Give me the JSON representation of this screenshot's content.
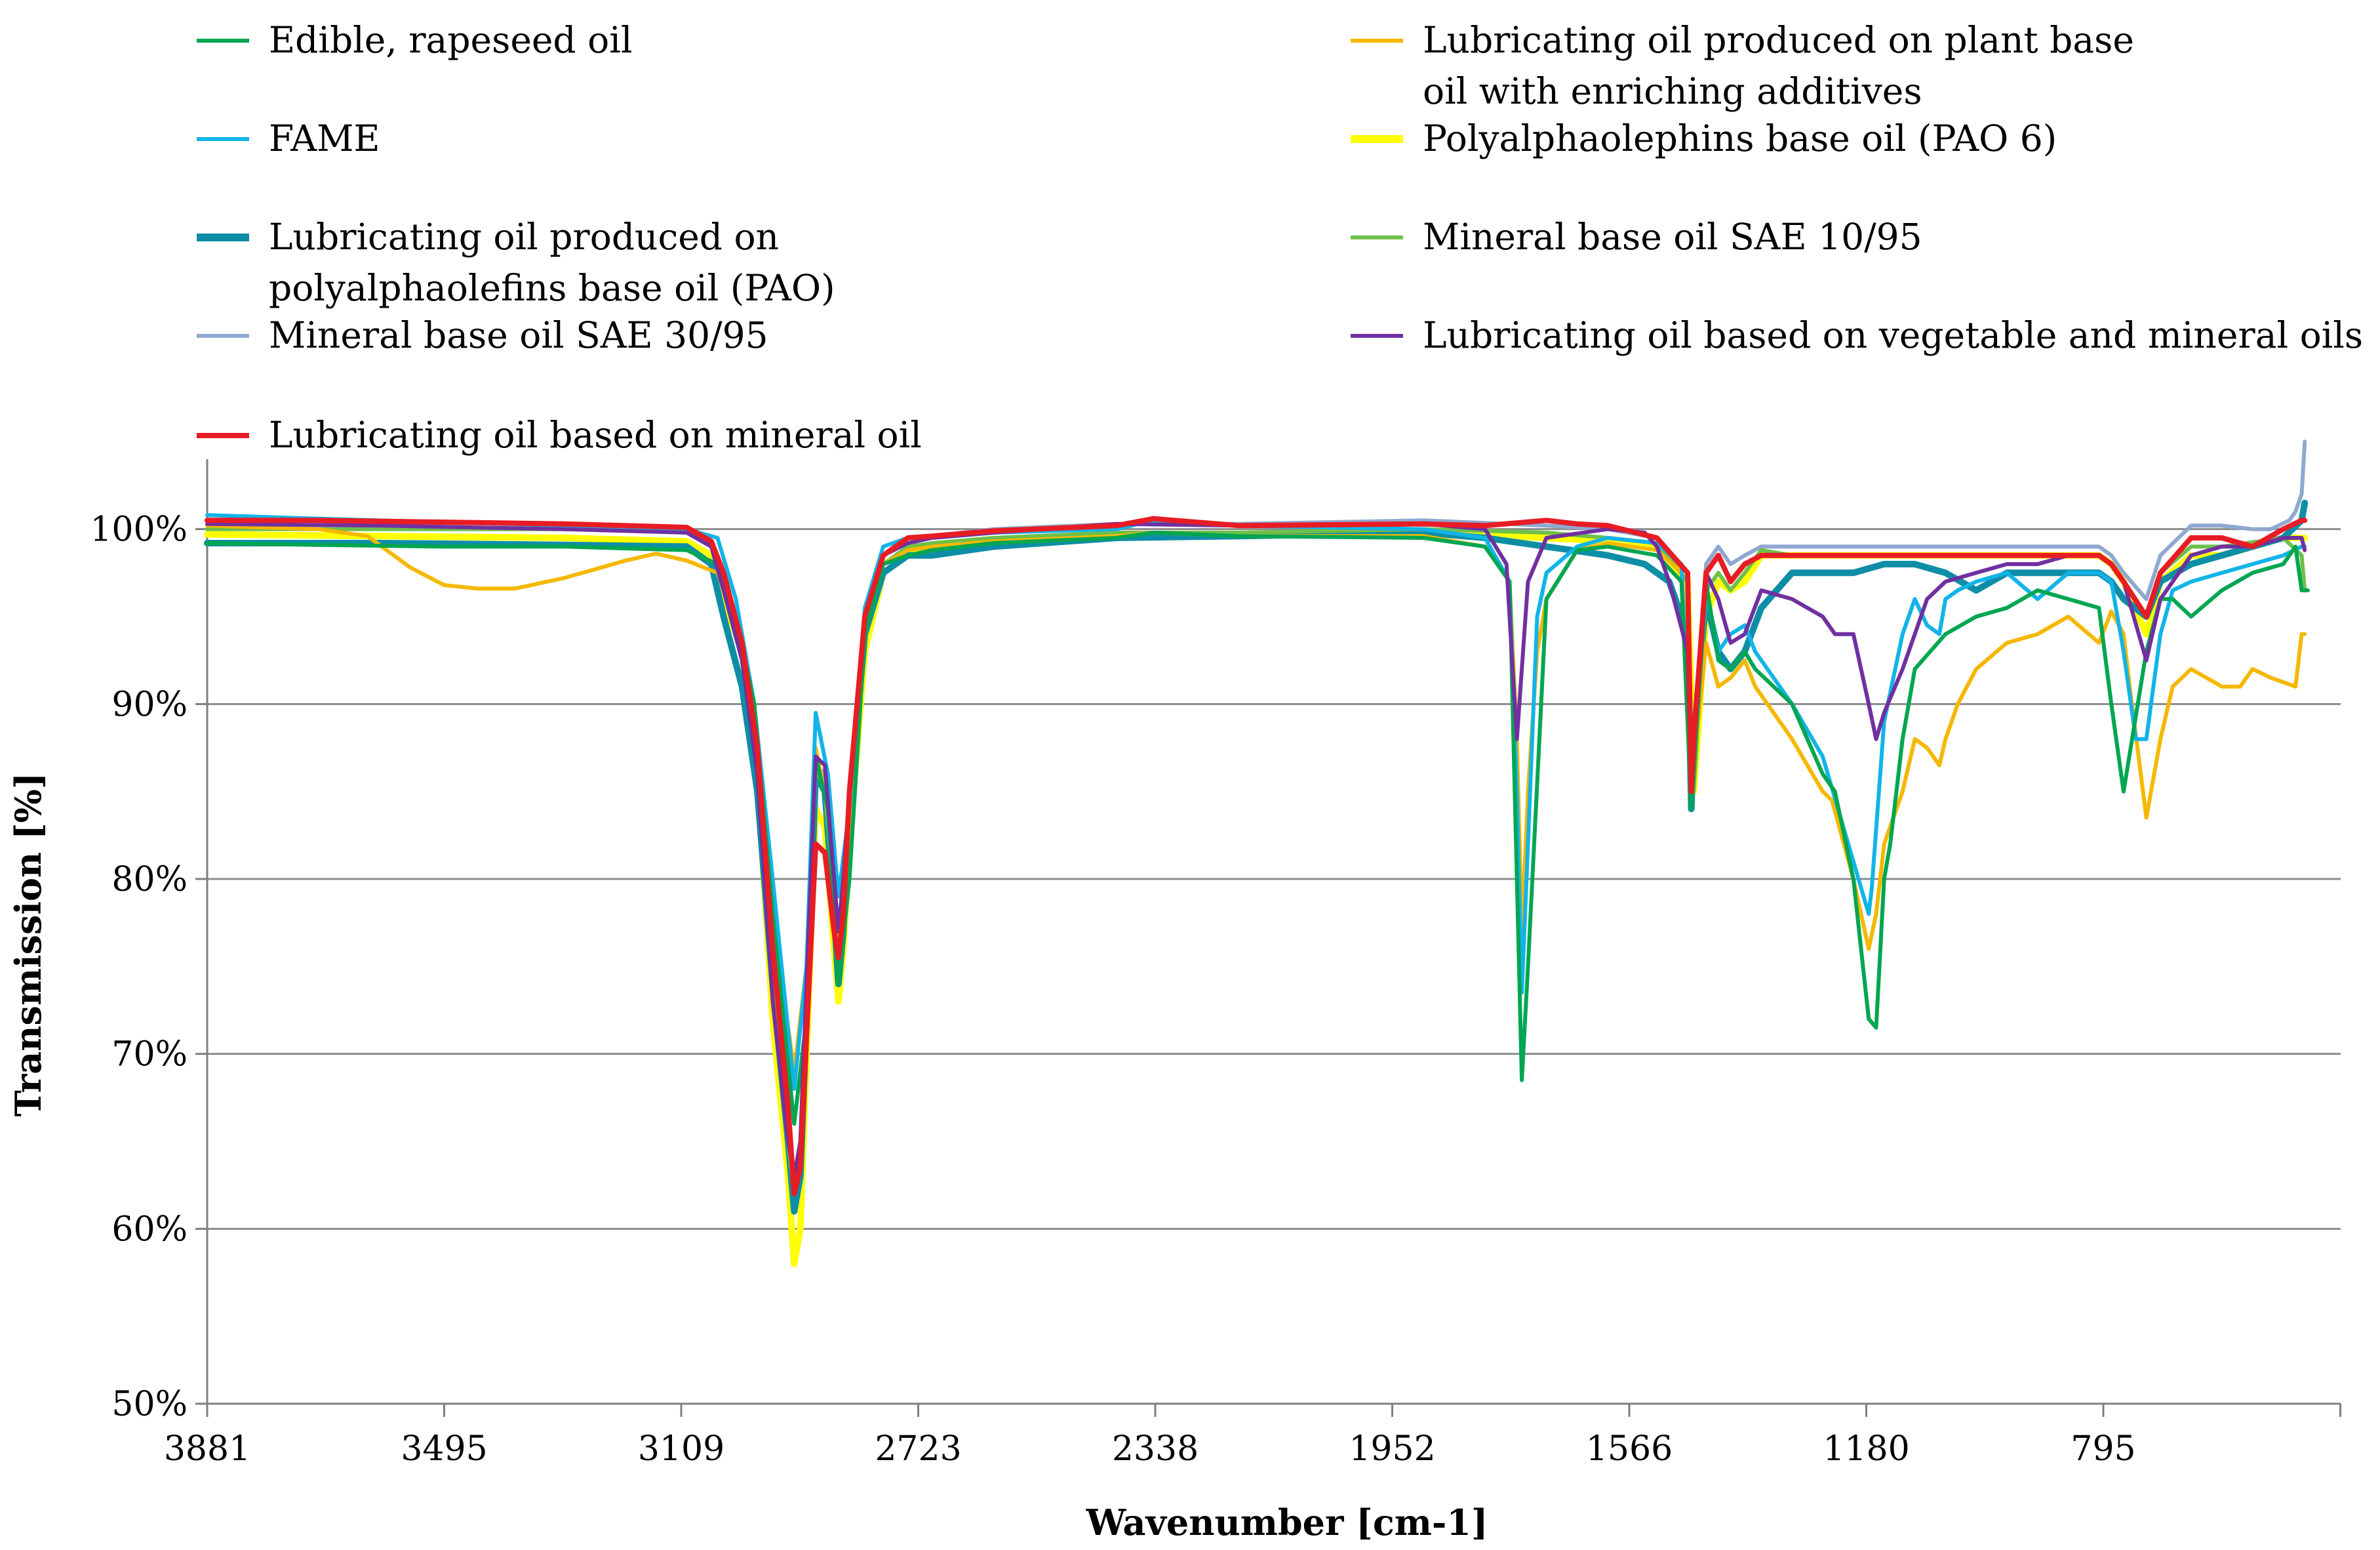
{
  "chart_data": {
    "type": "line",
    "title": "",
    "xlabel": "Wavenumber [cm-1]",
    "ylabel": "Transmission [%]",
    "xlim": [
      3881,
      400
    ],
    "x_reversed": true,
    "ylim": [
      50,
      104
    ],
    "x_ticks": [
      "3881",
      "3495",
      "3109",
      "2723",
      "2338",
      "1952",
      "1566",
      "1180",
      "795"
    ],
    "y_ticks": [
      "50%",
      "60%",
      "70%",
      "80%",
      "90%",
      "100%"
    ],
    "grid": "horizontal",
    "legend_position": "top",
    "series": [
      {
        "name": "Edible, rapeseed oil",
        "color": "#00a651",
        "x": [
          3881,
          3700,
          3500,
          3300,
          3100,
          3050,
          3020,
          2990,
          2960,
          2925,
          2905,
          2890,
          2870,
          2853,
          2835,
          2810,
          2780,
          2740,
          2700,
          2600,
          2400,
          2340,
          2200,
          1900,
          1800,
          1760,
          1748,
          1740,
          1730,
          1700,
          1650,
          1600,
          1520,
          1480,
          1464,
          1440,
          1420,
          1400,
          1377,
          1360,
          1300,
          1250,
          1230,
          1200,
          1175,
          1163,
          1150,
          1140,
          1120,
          1100,
          1050,
          1000,
          950,
          900,
          850,
          800,
          780,
          760,
          723,
          700,
          680,
          650,
          600,
          550,
          500,
          480,
          470,
          460
        ],
        "y": [
          99.2,
          99.1,
          99,
          99,
          98.8,
          98,
          95,
          90,
          78,
          66,
          72,
          87,
          84,
          74,
          80,
          94,
          98,
          98.5,
          98.8,
          99.2,
          99.5,
          99.8,
          99.6,
          99.5,
          99,
          97,
          80,
          68.5,
          75,
          96,
          98.8,
          99,
          98.5,
          97,
          84,
          97,
          92.5,
          92,
          93,
          92,
          90,
          86,
          85,
          80,
          72,
          71.5,
          80,
          82,
          88,
          92,
          94,
          95,
          95.5,
          96.5,
          96,
          95.5,
          90,
          85,
          93,
          96,
          96,
          95,
          96.5,
          97.5,
          98,
          99,
          96.5,
          96.5
        ]
      },
      {
        "name": "Lubricating oil produced on plant base oil with enriching additives",
        "color": "#f5b800",
        "x": [
          3881,
          3700,
          3620,
          3550,
          3495,
          3440,
          3380,
          3300,
          3200,
          3150,
          3100,
          3050,
          3020,
          2990,
          2960,
          2925,
          2905,
          2890,
          2870,
          2853,
          2835,
          2810,
          2780,
          2740,
          2700,
          2600,
          2400,
          2340,
          2200,
          1900,
          1800,
          1760,
          1748,
          1740,
          1730,
          1715,
          1700,
          1650,
          1600,
          1520,
          1480,
          1464,
          1440,
          1420,
          1400,
          1377,
          1360,
          1300,
          1250,
          1235,
          1200,
          1175,
          1163,
          1150,
          1120,
          1100,
          1080,
          1060,
          1050,
          1030,
          1000,
          950,
          900,
          850,
          800,
          780,
          760,
          750,
          723,
          700,
          680,
          650,
          600,
          570,
          550,
          520,
          480,
          470,
          465
        ],
        "y": [
          100.2,
          100,
          99.6,
          97.8,
          96.8,
          96.6,
          96.6,
          97.2,
          98.2,
          98.6,
          98.2,
          97.5,
          95,
          90,
          78,
          69,
          75,
          87.5,
          84,
          76,
          82,
          94,
          98,
          98.8,
          99,
          99.3,
          99.6,
          99.8,
          99.6,
          99.6,
          99,
          97,
          88,
          77,
          85,
          93,
          96,
          98.8,
          99.2,
          98.8,
          97.5,
          85,
          93.5,
          91,
          91.5,
          92.5,
          91,
          88,
          85,
          84.5,
          80,
          76,
          78,
          82,
          85,
          88,
          87.5,
          86.5,
          88,
          90,
          92,
          93.5,
          94,
          95,
          93.5,
          95.3,
          94,
          91,
          83.5,
          88,
          91,
          92,
          91,
          91,
          92,
          91.5,
          91,
          94,
          94
        ]
      },
      {
        "name": "FAME",
        "color": "#12b4e8",
        "x": [
          3881,
          3700,
          3500,
          3300,
          3100,
          3050,
          3020,
          2990,
          2960,
          2925,
          2905,
          2890,
          2870,
          2853,
          2835,
          2810,
          2780,
          2740,
          2700,
          2600,
          2400,
          2340,
          2200,
          1900,
          1800,
          1760,
          1748,
          1740,
          1730,
          1715,
          1700,
          1650,
          1600,
          1520,
          1480,
          1464,
          1440,
          1420,
          1400,
          1377,
          1360,
          1300,
          1250,
          1200,
          1175,
          1170,
          1150,
          1120,
          1100,
          1080,
          1060,
          1050,
          1030,
          1000,
          950,
          900,
          850,
          800,
          780,
          760,
          740,
          723,
          700,
          680,
          650,
          600,
          550,
          500,
          470,
          465
        ],
        "y": [
          100.8,
          100.6,
          100.4,
          100.2,
          100,
          99.5,
          96,
          90,
          80,
          68,
          75,
          89.5,
          86,
          79,
          84,
          95.5,
          99,
          99.5,
          99.5,
          99.8,
          100,
          100.5,
          100.2,
          100,
          99.5,
          97,
          85,
          73.5,
          82,
          95,
          97.5,
          99,
          99.5,
          99.2,
          98,
          84.5,
          96.5,
          93,
          94,
          94.5,
          93,
          90,
          87,
          81,
          78,
          79.5,
          89,
          94,
          96,
          94.5,
          94,
          96,
          96.5,
          97,
          97.5,
          96,
          97.5,
          97.5,
          97,
          93,
          88,
          88,
          94,
          96.5,
          97,
          97.5,
          98,
          98.5,
          99,
          99
        ]
      },
      {
        "name": "Polyalphaolephins base oil (PAO 6)",
        "color": "#ffff00",
        "x": [
          3881,
          3600,
          3300,
          3100,
          3060,
          3040,
          3010,
          2985,
          2960,
          2935,
          2925,
          2915,
          2905,
          2890,
          2875,
          2860,
          2853,
          2845,
          2835,
          2810,
          2780,
          2740,
          2700,
          2600,
          2400,
          2200,
          1900,
          1700,
          1600,
          1520,
          1470,
          1464,
          1460,
          1440,
          1420,
          1400,
          1377,
          1350,
          1300,
          1200,
          1100,
          1000,
          900,
          800,
          780,
          760,
          723,
          700,
          650,
          600,
          500,
          465
        ],
        "y": [
          99.7,
          99.6,
          99.5,
          99.3,
          98.5,
          96,
          93,
          86,
          72,
          63,
          58,
          60,
          70,
          84,
          83,
          76,
          73,
          76,
          82,
          93,
          97.5,
          98.5,
          98.8,
          99.3,
          99.6,
          99.6,
          99.8,
          99.5,
          99.3,
          99,
          97,
          90,
          85,
          95,
          97,
          96.5,
          97,
          98.5,
          98.5,
          98.5,
          98.5,
          98.5,
          98.5,
          98.5,
          98,
          97,
          94,
          97,
          98.5,
          98.5,
          99.5,
          99.5
        ]
      },
      {
        "name": "Lubricating oil produced on polyalphaolefins base oil (PAO)",
        "color": "#0e8ea6",
        "x": [
          3881,
          3600,
          3300,
          3100,
          3060,
          3040,
          3010,
          2985,
          2960,
          2935,
          2925,
          2915,
          2905,
          2890,
          2875,
          2860,
          2853,
          2845,
          2835,
          2810,
          2780,
          2740,
          2700,
          2600,
          2400,
          2200,
          1900,
          1800,
          1700,
          1600,
          1540,
          1500,
          1470,
          1464,
          1460,
          1440,
          1420,
          1400,
          1377,
          1350,
          1300,
          1250,
          1200,
          1150,
          1100,
          1050,
          1000,
          950,
          900,
          850,
          800,
          780,
          760,
          723,
          700,
          650,
          600,
          550,
          500,
          470,
          465
        ],
        "y": [
          99.2,
          99.2,
          99.1,
          99,
          98,
          95,
          91,
          85,
          74,
          65,
          61,
          63,
          72,
          86,
          85,
          78,
          74,
          77,
          84,
          94,
          97.5,
          98.5,
          98.5,
          99,
          99.5,
          99.6,
          99.8,
          99.5,
          99,
          98.5,
          98,
          97,
          94,
          84,
          88,
          96,
          93,
          92,
          93,
          95.5,
          97.5,
          97.5,
          97.5,
          98,
          98,
          97.5,
          96.5,
          97.5,
          97.5,
          97.5,
          97.5,
          97,
          96,
          95,
          97,
          98,
          98.5,
          99,
          99.5,
          100.5,
          101.5
        ]
      },
      {
        "name": "Mineral base oil SAE 10/95",
        "color": "#6dc04a",
        "x": [
          3881,
          3600,
          3300,
          3100,
          3060,
          3040,
          3010,
          2985,
          2960,
          2935,
          2925,
          2915,
          2905,
          2890,
          2875,
          2860,
          2853,
          2845,
          2835,
          2810,
          2780,
          2740,
          2700,
          2600,
          2400,
          2200,
          1900,
          1700,
          1600,
          1520,
          1470,
          1464,
          1460,
          1440,
          1420,
          1400,
          1377,
          1350,
          1300,
          1200,
          1100,
          1000,
          900,
          800,
          780,
          760,
          723,
          700,
          650,
          600,
          500,
          470,
          465
        ],
        "y": [
          100,
          100,
          100,
          99.8,
          99,
          96.5,
          93,
          87,
          74,
          65,
          62,
          64,
          73,
          86.5,
          85,
          79,
          76,
          79,
          85,
          94.5,
          98,
          99,
          99.2,
          99.5,
          99.8,
          99.8,
          100,
          99.8,
          99.5,
          99.2,
          97,
          88,
          85,
          96.5,
          97.5,
          96.5,
          97.5,
          98.8,
          98.5,
          98.5,
          98.5,
          98.5,
          98.5,
          98.5,
          98,
          97,
          95,
          97.5,
          99,
          99,
          99.5,
          98.5,
          96.5
        ]
      },
      {
        "name": "Mineral base oil SAE 30/95",
        "color": "#8ea8d0",
        "x": [
          3881,
          3700,
          3500,
          3300,
          3100,
          3060,
          3040,
          3010,
          2985,
          2960,
          2935,
          2925,
          2915,
          2905,
          2890,
          2875,
          2860,
          2853,
          2845,
          2835,
          2810,
          2780,
          2740,
          2700,
          2600,
          2400,
          2200,
          1900,
          1700,
          1600,
          1520,
          1470,
          1464,
          1460,
          1440,
          1420,
          1400,
          1377,
          1350,
          1300,
          1200,
          1100,
          1000,
          900,
          800,
          780,
          760,
          723,
          700,
          650,
          600,
          550,
          520,
          490,
          480,
          470,
          465
        ],
        "y": [
          100.5,
          100.5,
          100.4,
          100.2,
          100,
          99.2,
          97,
          93.5,
          87.5,
          75,
          66,
          62,
          64,
          73,
          86.5,
          86,
          80,
          76,
          79,
          85,
          95,
          98.5,
          99.5,
          99.6,
          100,
          100.3,
          100.3,
          100.5,
          100.2,
          100,
          99.5,
          97.5,
          86,
          87,
          98,
          99,
          98,
          98.5,
          99,
          99,
          99,
          99,
          99,
          99,
          99,
          98.5,
          97.5,
          96,
          98.5,
          100.2,
          100.2,
          100,
          100,
          100.5,
          101,
          102,
          105
        ]
      },
      {
        "name": "Lubricating oil based on vegetable and mineral oils",
        "color": "#7030a0",
        "x": [
          3881,
          3600,
          3300,
          3100,
          3060,
          3040,
          3010,
          2985,
          2960,
          2935,
          2925,
          2915,
          2905,
          2890,
          2875,
          2860,
          2853,
          2845,
          2835,
          2810,
          2780,
          2740,
          2700,
          2600,
          2400,
          2200,
          1900,
          1800,
          1765,
          1755,
          1748,
          1740,
          1730,
          1700,
          1600,
          1540,
          1520,
          1500,
          1470,
          1464,
          1460,
          1440,
          1420,
          1400,
          1377,
          1350,
          1300,
          1250,
          1230,
          1200,
          1175,
          1163,
          1150,
          1120,
          1100,
          1080,
          1050,
          1000,
          950,
          900,
          850,
          800,
          780,
          760,
          723,
          700,
          650,
          600,
          550,
          500,
          470,
          465
        ],
        "y": [
          100.3,
          100.2,
          100,
          99.8,
          99,
          96.5,
          92.5,
          86,
          73,
          65,
          63,
          65,
          74,
          87,
          86.5,
          80,
          77,
          80,
          85,
          95,
          98.5,
          99.2,
          99.5,
          99.8,
          100.3,
          100.2,
          100.3,
          100,
          98,
          92,
          88,
          92,
          97,
          99.5,
          100,
          99.8,
          99,
          97,
          93,
          85,
          88,
          97.5,
          96,
          93.5,
          94,
          96.5,
          96,
          95,
          94,
          94,
          90,
          88,
          89.5,
          92,
          94,
          96,
          97,
          97.5,
          98,
          98,
          98.5,
          98.5,
          98,
          97,
          92.5,
          96,
          98.5,
          99,
          99,
          99.5,
          99.5,
          98.8
        ]
      },
      {
        "name": "Lubricating oil based on mineral oil",
        "color": "#e81c24",
        "x": [
          3881,
          3700,
          3500,
          3300,
          3100,
          3060,
          3040,
          3010,
          2985,
          2960,
          2935,
          2925,
          2915,
          2905,
          2890,
          2875,
          2860,
          2853,
          2845,
          2835,
          2810,
          2780,
          2740,
          2700,
          2600,
          2400,
          2340,
          2200,
          1900,
          1800,
          1700,
          1650,
          1600,
          1520,
          1470,
          1464,
          1460,
          1440,
          1420,
          1400,
          1377,
          1350,
          1300,
          1250,
          1200,
          1150,
          1100,
          1050,
          1000,
          950,
          900,
          850,
          800,
          780,
          760,
          723,
          700,
          650,
          600,
          550,
          500,
          470,
          465
        ],
        "y": [
          100.5,
          100.5,
          100.4,
          100.3,
          100.1,
          99.3,
          97.5,
          93.5,
          87.5,
          76,
          67,
          62,
          63.5,
          71,
          82,
          81.5,
          77,
          75.5,
          78,
          85,
          95,
          98.5,
          99.5,
          99.6,
          99.9,
          100.2,
          100.6,
          100.2,
          100.3,
          100.2,
          100.5,
          100.3,
          100.2,
          99.5,
          97.5,
          85,
          88,
          97.5,
          98.5,
          97,
          98,
          98.5,
          98.5,
          98.5,
          98.5,
          98.5,
          98.5,
          98.5,
          98.5,
          98.5,
          98.5,
          98.5,
          98.5,
          98,
          97,
          95,
          97.5,
          99.5,
          99.5,
          99,
          100,
          100.5,
          100.5
        ]
      }
    ]
  }
}
